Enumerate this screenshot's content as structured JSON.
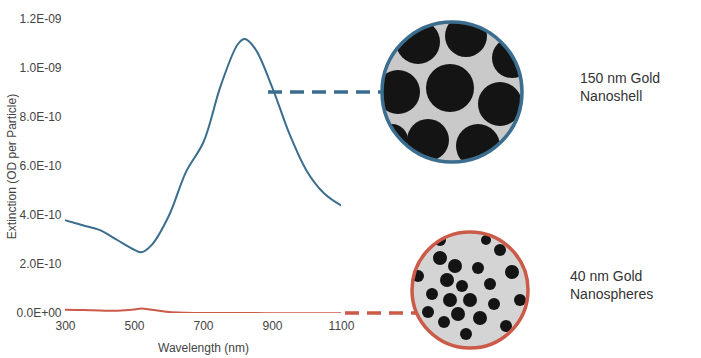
{
  "chart_data": {
    "type": "line",
    "x_label": "Wavelength (nm)",
    "y_label": "Extinction (OD per Particle)",
    "x": [
      300,
      350,
      400,
      450,
      500,
      520,
      550,
      600,
      650,
      700,
      750,
      800,
      820,
      850,
      900,
      950,
      1000,
      1050,
      1100
    ],
    "series": [
      {
        "name": "150 nm Gold Nanoshell",
        "color": "#3b6d8e",
        "values": [
          3.8e-10,
          3.6e-10,
          3.4e-10,
          3e-10,
          2.6e-10,
          2.5e-10,
          2.8e-10,
          4e-10,
          5.8e-10,
          7e-10,
          9.3e-10,
          1.1e-09,
          1.12e-09,
          1.08e-09,
          9.2e-10,
          7.3e-10,
          5.8e-10,
          4.9e-10,
          4.4e-10
        ]
      },
      {
        "name": "40 nm Gold Nanospheres",
        "color": "#cc5a48",
        "values": [
          1.5e-11,
          1.4e-11,
          1.2e-11,
          1.1e-11,
          1.6e-11,
          2e-11,
          1.5e-11,
          6e-12,
          3e-12,
          2e-12,
          2e-12,
          2e-12,
          2e-12,
          2e-12,
          1e-12,
          1e-12,
          1e-12,
          1e-12,
          1e-12
        ]
      }
    ],
    "xlim": [
      300,
      1100
    ],
    "xticks": [
      300,
      500,
      700,
      900,
      1100
    ],
    "ylim": [
      0,
      1.2e-09
    ],
    "yticks": [
      {
        "value": 0,
        "label": "0.0E+00"
      },
      {
        "value": 2e-10,
        "label": "2.0E-10"
      },
      {
        "value": 4e-10,
        "label": "4.0E-10"
      },
      {
        "value": 6e-10,
        "label": "6.0E-10"
      },
      {
        "value": 8e-10,
        "label": "8.0E-10"
      },
      {
        "value": 1e-09,
        "label": "1.0E-09"
      },
      {
        "value": 1.2e-09,
        "label": "1.2E-09"
      }
    ],
    "grid": false
  }
}
